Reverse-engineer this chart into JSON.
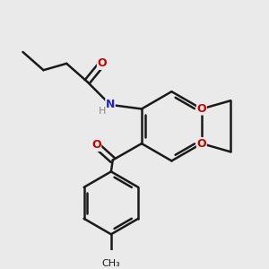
{
  "background_color": "#eaeaea",
  "bond_color": "#1a1a1a",
  "atom_colors": {
    "O": "#cc0000",
    "N": "#2222cc",
    "H": "#888888",
    "C": "#1a1a1a"
  },
  "figsize": [
    3.0,
    3.0
  ],
  "dpi": 100
}
